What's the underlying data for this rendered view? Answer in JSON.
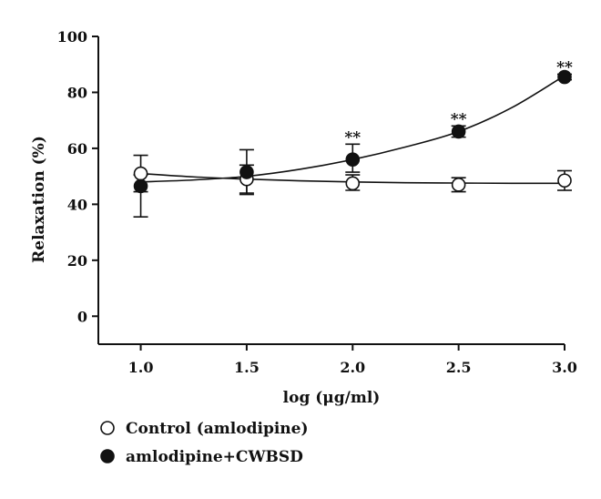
{
  "chart_data": {
    "type": "line",
    "xlabel": "log (μg/ml)",
    "ylabel": "Relaxation (%)",
    "xlim": [
      0.8,
      3.0
    ],
    "ylim": [
      -10,
      100
    ],
    "x_ticks": [
      1.0,
      1.5,
      2.0,
      2.5,
      3.0
    ],
    "x_tick_labels": [
      "1.0",
      "1.5",
      "2.0",
      "2.5",
      "3.0"
    ],
    "y_ticks": [
      0,
      20,
      40,
      60,
      80,
      100
    ],
    "y_tick_labels": [
      "0",
      "20",
      "40",
      "60",
      "80",
      "100"
    ],
    "legend_position": "bottom-left",
    "grid": false,
    "series": [
      {
        "name": "Control (amlodipine)",
        "marker": "open-circle",
        "color": "#111111",
        "x": [
          1.0,
          1.5,
          2.0,
          2.5,
          3.0
        ],
        "y": [
          51,
          49,
          47.5,
          47,
          48.5
        ],
        "err_up": [
          6.5,
          5,
          3,
          2.5,
          3.5
        ],
        "err_down": [
          6.5,
          5,
          2.5,
          2.5,
          3.5
        ],
        "fit": [
          [
            1.0,
            51
          ],
          [
            1.25,
            49.8
          ],
          [
            1.5,
            49
          ],
          [
            1.75,
            48.4
          ],
          [
            2.0,
            48
          ],
          [
            2.25,
            47.7
          ],
          [
            2.5,
            47.6
          ],
          [
            2.75,
            47.5
          ],
          [
            3.0,
            47.5
          ]
        ]
      },
      {
        "name": "amlodipine+CWBSD",
        "marker": "filled-circle",
        "color": "#111111",
        "x": [
          1.0,
          1.5,
          2.0,
          2.5,
          3.0
        ],
        "y": [
          46.5,
          51.5,
          56,
          66,
          85.5
        ],
        "err_up": [
          4,
          8,
          5.5,
          2,
          1
        ],
        "err_down": [
          11,
          8,
          4.5,
          2,
          1
        ],
        "fit": [
          [
            1.0,
            48
          ],
          [
            1.25,
            48.7
          ],
          [
            1.5,
            50
          ],
          [
            1.75,
            52.5
          ],
          [
            2.0,
            56
          ],
          [
            2.25,
            60.5
          ],
          [
            2.5,
            66
          ],
          [
            2.75,
            74.5
          ],
          [
            3.0,
            86
          ]
        ]
      }
    ],
    "annotations": [
      {
        "x": 2.0,
        "y": 61.5,
        "text": "**"
      },
      {
        "x": 2.5,
        "y": 68,
        "text": "**"
      },
      {
        "x": 3.0,
        "y": 86.5,
        "text": "**"
      }
    ]
  }
}
